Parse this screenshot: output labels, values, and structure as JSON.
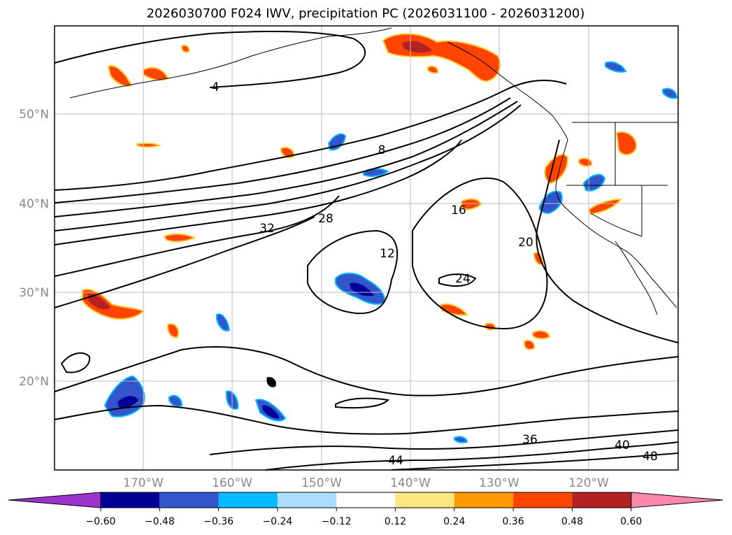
{
  "title": "2026030700 F024 IWV, precipitation PC (2026031100 - 2026031200)",
  "lat_labels": [
    "50°N",
    "40°N",
    "30°N",
    "20°N"
  ],
  "lon_labels": [
    "170°W",
    "160°W",
    "150°W",
    "140°W",
    "130°W",
    "120°W"
  ],
  "contour_labels": [
    "4",
    "8",
    "12",
    "16",
    "20",
    "24",
    "28",
    "32",
    "36",
    "40",
    "44",
    "48"
  ],
  "colorbar": {
    "tick_labels": [
      "−0.60",
      "−0.48",
      "−0.36",
      "−0.24",
      "−0.12",
      "0.12",
      "0.24",
      "0.36",
      "0.48",
      "0.60"
    ],
    "colors": [
      "#9933cc",
      "#000099",
      "#3355cc",
      "#00bbff",
      "#aaddff",
      "#ffffff",
      "#ffe680",
      "#ff9900",
      "#ff4400",
      "#b22222",
      "#ff88aa"
    ]
  },
  "colors": {
    "frame": "#000000",
    "grid": "#bbbbbb",
    "contour": "#000000",
    "axis_label": "#888888"
  }
}
